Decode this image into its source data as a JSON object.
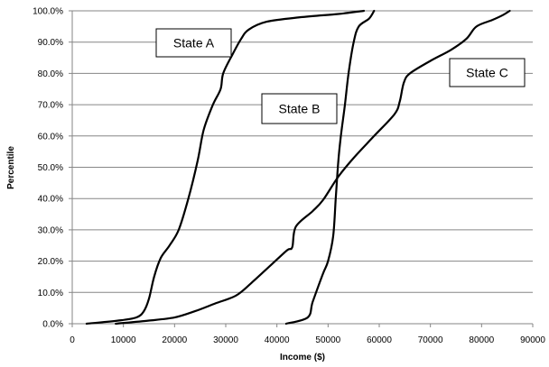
{
  "chart_data": {
    "type": "line",
    "title": "",
    "xlabel": "Income ($)",
    "ylabel": "Percentile",
    "xlim": [
      0,
      90000
    ],
    "ylim": [
      0,
      100
    ],
    "x_ticks": [
      0,
      10000,
      20000,
      30000,
      40000,
      50000,
      60000,
      70000,
      80000,
      90000
    ],
    "x_tick_labels": [
      "0",
      "10000",
      "20000",
      "30000",
      "40000",
      "50000",
      "60000",
      "70000",
      "80000",
      "90000"
    ],
    "y_ticks": [
      0,
      10,
      20,
      30,
      40,
      50,
      60,
      70,
      80,
      90,
      100
    ],
    "y_tick_labels": [
      "0.0%",
      "10.0%",
      "20.0%",
      "30.0%",
      "40.0%",
      "50.0%",
      "60.0%",
      "70.0%",
      "80.0%",
      "90.0%",
      "100.0%"
    ],
    "grid": true,
    "legend": "none",
    "line_color": "#000000",
    "series": [
      {
        "name": "State A",
        "points": [
          [
            2800,
            0
          ],
          [
            9000,
            1
          ],
          [
            12500,
            2
          ],
          [
            14000,
            4
          ],
          [
            15000,
            8
          ],
          [
            16000,
            15
          ],
          [
            17300,
            21
          ],
          [
            19000,
            25
          ],
          [
            20800,
            30
          ],
          [
            22700,
            40
          ],
          [
            24500,
            52
          ],
          [
            25700,
            62
          ],
          [
            27500,
            70
          ],
          [
            29000,
            75
          ],
          [
            29500,
            80
          ],
          [
            31300,
            86
          ],
          [
            33000,
            91
          ],
          [
            34500,
            94
          ],
          [
            38000,
            96.5
          ],
          [
            45000,
            98
          ],
          [
            52000,
            99
          ],
          [
            57000,
            100
          ]
        ]
      },
      {
        "name": "State B",
        "points": [
          [
            41800,
            0
          ],
          [
            46000,
            2
          ],
          [
            47000,
            7
          ],
          [
            49000,
            16
          ],
          [
            50000,
            20
          ],
          [
            51000,
            28
          ],
          [
            51500,
            40
          ],
          [
            52000,
            52
          ],
          [
            52500,
            60
          ],
          [
            53300,
            70
          ],
          [
            54000,
            80
          ],
          [
            55000,
            90
          ],
          [
            56000,
            95
          ],
          [
            58000,
            97.5
          ],
          [
            59000,
            100
          ]
        ]
      },
      {
        "name": "State C",
        "points": [
          [
            8500,
            0
          ],
          [
            15000,
            1
          ],
          [
            20000,
            2
          ],
          [
            24000,
            4
          ],
          [
            28000,
            6.5
          ],
          [
            32000,
            9
          ],
          [
            35000,
            13
          ],
          [
            39000,
            19
          ],
          [
            42000,
            23.5
          ],
          [
            43000,
            24.5
          ],
          [
            43700,
            31
          ],
          [
            47000,
            36
          ],
          [
            49000,
            39.5
          ],
          [
            52000,
            47
          ],
          [
            55000,
            53
          ],
          [
            59000,
            60
          ],
          [
            63000,
            67
          ],
          [
            64000,
            71
          ],
          [
            64800,
            77
          ],
          [
            66000,
            80
          ],
          [
            70000,
            84
          ],
          [
            74000,
            87.5
          ],
          [
            77000,
            91
          ],
          [
            79000,
            95
          ],
          [
            82000,
            97
          ],
          [
            84000,
            98.5
          ],
          [
            85500,
            100
          ]
        ]
      }
    ],
    "annotations": [
      {
        "series": "State A",
        "text": "State A",
        "anchor": "upper-left"
      },
      {
        "series": "State B",
        "text": "State B",
        "anchor": "center"
      },
      {
        "series": "State C",
        "text": "State C",
        "anchor": "upper-right"
      }
    ]
  }
}
